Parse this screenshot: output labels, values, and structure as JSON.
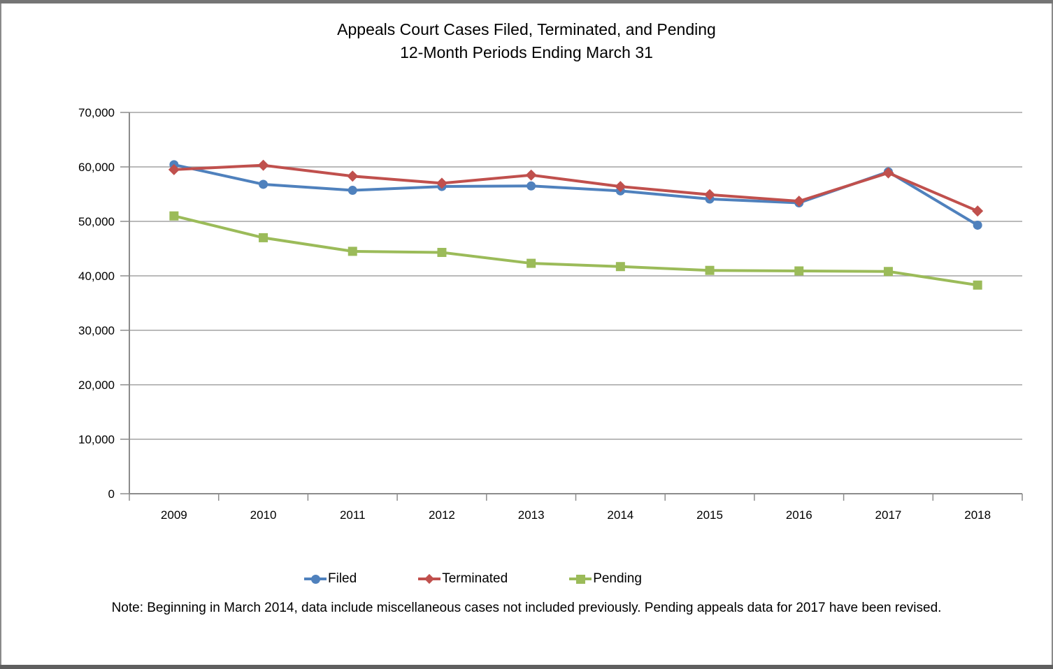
{
  "page": {
    "title_line1": "Appeals Court Cases Filed, Terminated, and Pending",
    "title_line2": "12-Month Periods Ending March 31",
    "note": "Note: Beginning in March 2014, data include miscellaneous cases not included previously. Pending appeals data for 2017 have been revised."
  },
  "colors": {
    "filed": "#4F81BD",
    "terminated": "#C0504D",
    "pending": "#9BBB59",
    "gridline": "#A3A3A3",
    "axis": "#8C8C8C",
    "text": "#000000",
    "page_background": "#FFFFFF"
  },
  "legend": {
    "items": [
      {
        "label": "Filed",
        "marker": "circle",
        "color": "#4F81BD"
      },
      {
        "label": "Terminated",
        "marker": "diamond",
        "color": "#C0504D"
      },
      {
        "label": "Pending",
        "marker": "square",
        "color": "#9BBB59"
      }
    ]
  },
  "chart_data": {
    "type": "line",
    "title": "Appeals Court Cases Filed, Terminated, and Pending",
    "subtitle": "12-Month Periods Ending March 31",
    "categories": [
      "2009",
      "2010",
      "2011",
      "2012",
      "2013",
      "2014",
      "2015",
      "2016",
      "2017",
      "2018"
    ],
    "series": [
      {
        "name": "Filed",
        "marker": "circle",
        "color": "#4F81BD",
        "values": [
          60400,
          56800,
          55700,
          56400,
          56500,
          55600,
          54100,
          53400,
          59100,
          49300
        ]
      },
      {
        "name": "Terminated",
        "marker": "diamond",
        "color": "#C0504D",
        "values": [
          59500,
          60300,
          58300,
          57000,
          58500,
          56400,
          54900,
          53700,
          58900,
          51900
        ]
      },
      {
        "name": "Pending",
        "marker": "square",
        "color": "#9BBB59",
        "values": [
          51000,
          47000,
          44500,
          44300,
          42300,
          41700,
          41000,
          40900,
          40800,
          38300
        ]
      }
    ],
    "xlabel": "",
    "ylabel": "",
    "ylim": [
      0,
      70000
    ],
    "ytick_step": 10000,
    "ytick_labels": [
      "0",
      "10,000",
      "20,000",
      "30,000",
      "40,000",
      "50,000",
      "60,000",
      "70,000"
    ],
    "grid": true,
    "legend_position": "bottom",
    "note": "Note: Beginning in March 2014, data include miscellaneous cases not included previously. Pending appeals data for 2017 have been revised."
  }
}
